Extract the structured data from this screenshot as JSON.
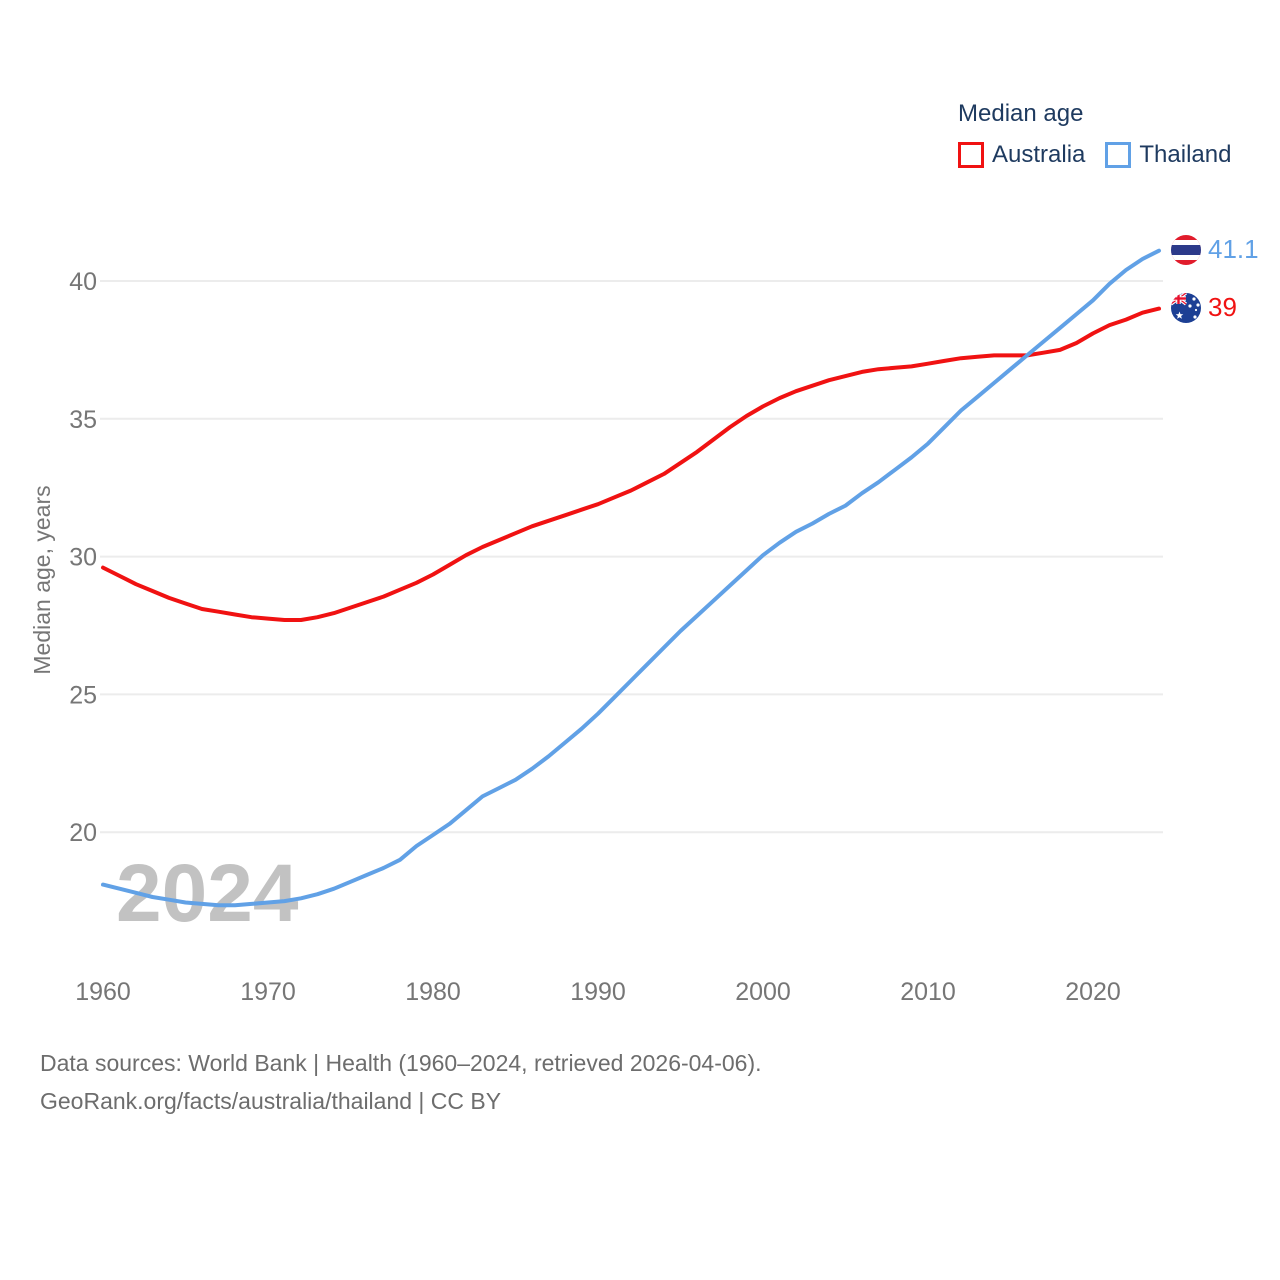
{
  "legend": {
    "title": "Median age",
    "items": [
      {
        "label": "Australia",
        "color": "#f01212"
      },
      {
        "label": "Thailand",
        "color": "#61a1e6"
      }
    ]
  },
  "watermark": "2024",
  "y_axis": {
    "title": "Median age, years",
    "ticks": [
      40,
      35,
      30,
      25,
      20
    ]
  },
  "x_axis": {
    "ticks": [
      1960,
      1970,
      1980,
      1990,
      2000,
      2010,
      2020
    ]
  },
  "end_labels": {
    "thailand": {
      "value": "41.1",
      "icon": "thailand-flag-icon"
    },
    "australia": {
      "value": "39",
      "icon": "australia-flag-icon"
    }
  },
  "footer": {
    "line1": "Data sources: World Bank | Health (1960–2024, retrieved 2026-04-06).",
    "line2": "GeoRank.org/facts/australia/thailand | CC BY"
  },
  "colors": {
    "australia_line": "#f01212",
    "thailand_line": "#61a1e6",
    "legend_text": "#1e3a5f",
    "tick_text": "#767676",
    "gridline": "#ececec",
    "watermark": "#c2c2c2",
    "footer_text": "#6d6d6d"
  },
  "chart_data": {
    "type": "line",
    "title": "Median age",
    "ylabel": "Median age, years",
    "xlabel": "",
    "x_range": [
      1960,
      2024
    ],
    "ylim": [
      17,
      42
    ],
    "grid": "horizontal",
    "legend_position": "top-right",
    "x": [
      1960,
      1961,
      1962,
      1963,
      1964,
      1965,
      1966,
      1967,
      1968,
      1969,
      1970,
      1971,
      1972,
      1973,
      1974,
      1975,
      1976,
      1977,
      1978,
      1979,
      1980,
      1981,
      1982,
      1983,
      1984,
      1985,
      1986,
      1987,
      1988,
      1989,
      1990,
      1991,
      1992,
      1993,
      1994,
      1995,
      1996,
      1997,
      1998,
      1999,
      2000,
      2001,
      2002,
      2003,
      2004,
      2005,
      2006,
      2007,
      2008,
      2009,
      2010,
      2011,
      2012,
      2013,
      2014,
      2015,
      2016,
      2017,
      2018,
      2019,
      2020,
      2021,
      2022,
      2023,
      2024
    ],
    "series": [
      {
        "name": "Australia",
        "color": "#f01212",
        "end_value": 39,
        "values": [
          29.6,
          29.3,
          29.0,
          28.75,
          28.5,
          28.3,
          28.1,
          28.0,
          27.9,
          27.8,
          27.75,
          27.7,
          27.7,
          27.8,
          27.95,
          28.15,
          28.35,
          28.55,
          28.8,
          29.05,
          29.35,
          29.7,
          30.05,
          30.35,
          30.6,
          30.85,
          31.1,
          31.3,
          31.5,
          31.7,
          31.9,
          32.15,
          32.4,
          32.7,
          33.0,
          33.4,
          33.8,
          34.25,
          34.7,
          35.1,
          35.45,
          35.75,
          36.0,
          36.2,
          36.4,
          36.55,
          36.7,
          36.8,
          36.85,
          36.9,
          37.0,
          37.1,
          37.2,
          37.25,
          37.3,
          37.3,
          37.3,
          37.4,
          37.5,
          37.75,
          38.1,
          38.4,
          38.6,
          38.85,
          39.0
        ]
      },
      {
        "name": "Thailand",
        "color": "#61a1e6",
        "end_value": 41.1,
        "values": [
          18.1,
          17.95,
          17.8,
          17.65,
          17.55,
          17.45,
          17.4,
          17.35,
          17.35,
          17.4,
          17.45,
          17.5,
          17.6,
          17.75,
          17.95,
          18.2,
          18.45,
          18.7,
          19.0,
          19.5,
          19.9,
          20.3,
          20.8,
          21.3,
          21.6,
          21.9,
          22.3,
          22.75,
          23.25,
          23.75,
          24.3,
          24.9,
          25.5,
          26.1,
          26.7,
          27.3,
          27.85,
          28.4,
          28.95,
          29.5,
          30.05,
          30.5,
          30.9,
          31.2,
          31.55,
          31.85,
          32.3,
          32.7,
          33.15,
          33.6,
          34.1,
          34.7,
          35.3,
          35.8,
          36.3,
          36.8,
          37.3,
          37.8,
          38.3,
          38.8,
          39.3,
          39.9,
          40.4,
          40.8,
          41.1
        ]
      }
    ]
  }
}
